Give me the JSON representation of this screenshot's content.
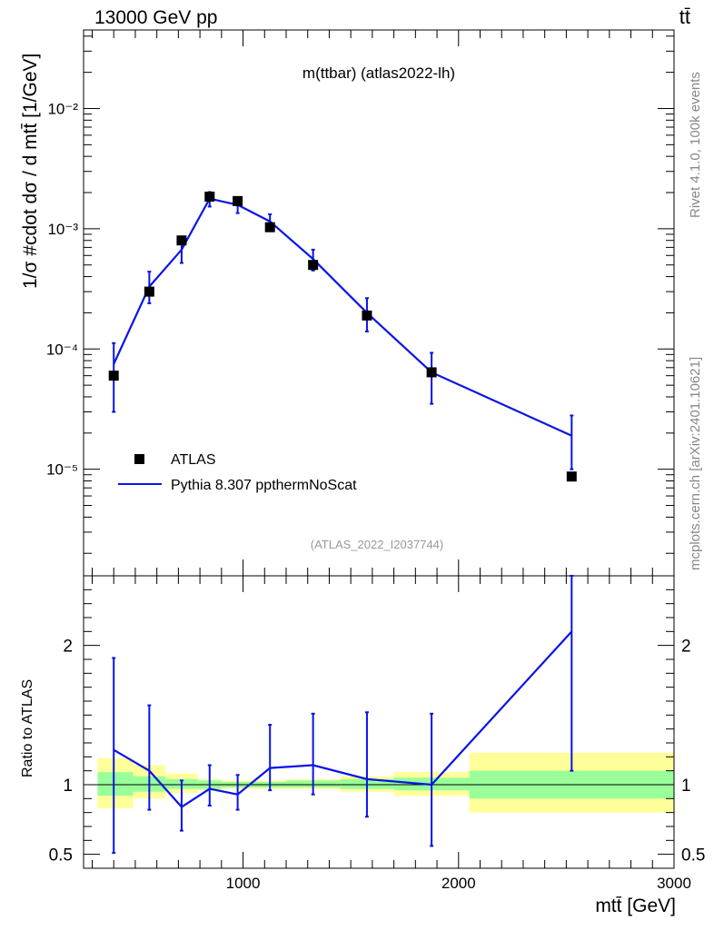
{
  "header": {
    "left": "13000 GeV pp",
    "right": "tt̄"
  },
  "side_labels": {
    "top": "Rivet 4.1.0,  100k events",
    "bottom": "mcplots.cern.ch [arXiv:2401.10621]"
  },
  "colors": {
    "data": "#000000",
    "mc": "#0a14e6",
    "band_inner": "#99ff99",
    "band_outer": "#ffff99"
  },
  "chart_data": [
    {
      "type": "scatter",
      "panel": "main",
      "title": "m(ttbar) (atlas2022-lh)",
      "watermark": "(ATLAS_2022_I2037744)",
      "xlabel": "mtt̄ [GeV]",
      "ylabel": "1/σ #cdot dσ / d mtt̄ [1/GeV]",
      "yscale": "log",
      "xlim": [
        260,
        3000
      ],
      "ylim": [
        1.3e-06,
        0.045
      ],
      "y_ticks": [
        {
          "value": 0.01,
          "label": "10⁻²"
        },
        {
          "value": 0.001,
          "label": "10⁻³"
        },
        {
          "value": 0.0001,
          "label": "10⁻⁴"
        },
        {
          "value": 1e-05,
          "label": "10⁻⁵"
        }
      ],
      "legend_position": "bottom-left",
      "legend": [
        {
          "name": "ATLAS",
          "kind": "marker"
        },
        {
          "name": "Pythia 8.307 ppthermNoScat",
          "kind": "line"
        }
      ],
      "series": [
        {
          "name": "ATLAS",
          "x": [
            400,
            565,
            715,
            845,
            975,
            1125,
            1325,
            1575,
            1875,
            2525
          ],
          "y": [
            6e-05,
            0.0003,
            0.0008,
            0.00185,
            0.0017,
            0.00103,
            0.0005,
            0.00019,
            6.4e-05,
            8.7e-06
          ]
        },
        {
          "name": "Pythia 8.307 ppthermNoScat",
          "x": [
            400,
            565,
            715,
            845,
            975,
            1125,
            1325,
            1575,
            1875,
            2525
          ],
          "y": [
            7.5e-05,
            0.00033,
            0.00067,
            0.00178,
            0.00158,
            0.00115,
            0.00056,
            0.0002,
            6.4e-05,
            1.9e-05
          ],
          "yerr_low": [
            4.5e-05,
            9e-05,
            0.00015,
            0.00025,
            0.00023,
            0.00015,
            0.00011,
            6e-05,
            2.9e-05,
            9e-06
          ],
          "yerr_high": [
            3.7e-05,
            0.00011,
            0.00016,
            0.00024,
            0.00022,
            0.00017,
            0.00011,
            6.5e-05,
            2.9e-05,
            9e-06
          ]
        }
      ]
    },
    {
      "type": "line",
      "panel": "ratio",
      "ylabel": "Ratio to ATLAS",
      "xlabel": "mtt̄ [GeV]",
      "xlim": [
        260,
        3000
      ],
      "ylim": [
        0.4,
        2.5
      ],
      "x_ticks": [
        1000,
        2000,
        3000
      ],
      "x_tick_labels": [
        "1000",
        "2000",
        "3000"
      ],
      "y_ticks": [
        2,
        1,
        0.5
      ],
      "y_tick_labels": [
        "2",
        "1",
        "0.5"
      ],
      "bands": [
        {
          "x0": 325,
          "x1": 490,
          "inner_lo": 0.92,
          "inner_hi": 1.09,
          "outer_lo": 0.83,
          "outer_hi": 1.19
        },
        {
          "x0": 490,
          "x1": 640,
          "inner_lo": 0.95,
          "inner_hi": 1.06,
          "outer_lo": 0.9,
          "outer_hi": 1.14
        },
        {
          "x0": 640,
          "x1": 790,
          "inner_lo": 0.97,
          "inner_hi": 1.04,
          "outer_lo": 0.94,
          "outer_hi": 1.08
        },
        {
          "x0": 790,
          "x1": 900,
          "inner_lo": 0.97,
          "inner_hi": 1.03,
          "outer_lo": 0.96,
          "outer_hi": 1.04
        },
        {
          "x0": 900,
          "x1": 1050,
          "inner_lo": 0.98,
          "inner_hi": 1.02,
          "outer_lo": 0.97,
          "outer_hi": 1.03
        },
        {
          "x0": 1050,
          "x1": 1200,
          "inner_lo": 0.98,
          "inner_hi": 1.02,
          "outer_lo": 0.97,
          "outer_hi": 1.03
        },
        {
          "x0": 1200,
          "x1": 1450,
          "inner_lo": 0.98,
          "inner_hi": 1.03,
          "outer_lo": 0.97,
          "outer_hi": 1.04
        },
        {
          "x0": 1450,
          "x1": 1700,
          "inner_lo": 0.97,
          "inner_hi": 1.04,
          "outer_lo": 0.95,
          "outer_hi": 1.06
        },
        {
          "x0": 1700,
          "x1": 2050,
          "inner_lo": 0.96,
          "inner_hi": 1.05,
          "outer_lo": 0.92,
          "outer_hi": 1.09
        },
        {
          "x0": 2050,
          "x1": 3000,
          "inner_lo": 0.9,
          "inner_hi": 1.1,
          "outer_lo": 0.8,
          "outer_hi": 1.23
        }
      ],
      "series": [
        {
          "name": "Pythia 8.307 ppthermNoScat / ATLAS",
          "x": [
            400,
            565,
            715,
            845,
            975,
            1125,
            1325,
            1575,
            1875,
            2525
          ],
          "y": [
            1.25,
            1.1,
            0.84,
            0.97,
            0.93,
            1.12,
            1.14,
            1.04,
            1.0,
            2.1
          ],
          "yerr_low": [
            0.74,
            0.28,
            0.17,
            0.12,
            0.11,
            0.16,
            0.21,
            0.27,
            0.44,
            1.0
          ],
          "yerr_high": [
            0.66,
            0.47,
            0.19,
            0.17,
            0.14,
            0.31,
            0.37,
            0.48,
            0.51,
            0.4
          ]
        }
      ]
    }
  ]
}
